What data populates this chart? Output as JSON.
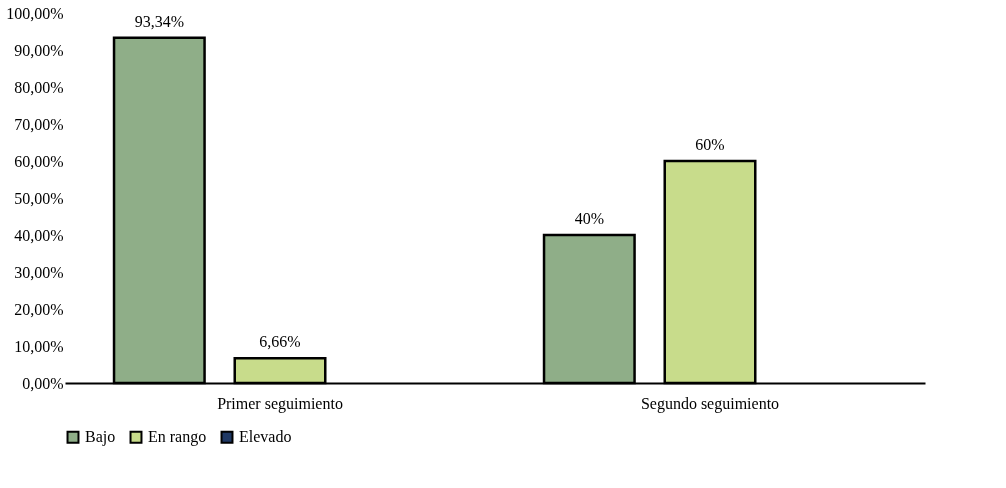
{
  "chart_data": {
    "type": "bar",
    "categories": [
      "Primer seguimiento",
      "Segundo seguimiento"
    ],
    "series": [
      {
        "name": "Bajo",
        "color": "#8fae88",
        "values": [
          93.34,
          40
        ],
        "value_labels": [
          "93,34%",
          "40%"
        ]
      },
      {
        "name": "En rango",
        "color": "#c8dc8b",
        "values": [
          6.66,
          60
        ],
        "value_labels": [
          "6,66%",
          "60%"
        ]
      },
      {
        "name": "Elevado",
        "color": "#1f3864",
        "values": [
          null,
          null
        ],
        "value_labels": [
          null,
          null
        ]
      }
    ],
    "ylim": [
      0,
      100
    ],
    "yticks": [
      {
        "value": 0,
        "label": "0,00%"
      },
      {
        "value": 10,
        "label": "10,00%"
      },
      {
        "value": 20,
        "label": "20,00%"
      },
      {
        "value": 30,
        "label": "30,00%"
      },
      {
        "value": 40,
        "label": "40,00%"
      },
      {
        "value": 50,
        "label": "50,00%"
      },
      {
        "value": 60,
        "label": "60,00%"
      },
      {
        "value": 70,
        "label": "70,00%"
      },
      {
        "value": 80,
        "label": "80,00%"
      },
      {
        "value": 90,
        "label": "90,00%"
      },
      {
        "value": 100,
        "label": "100,00%"
      }
    ],
    "grid": false,
    "legend": "bottom"
  }
}
